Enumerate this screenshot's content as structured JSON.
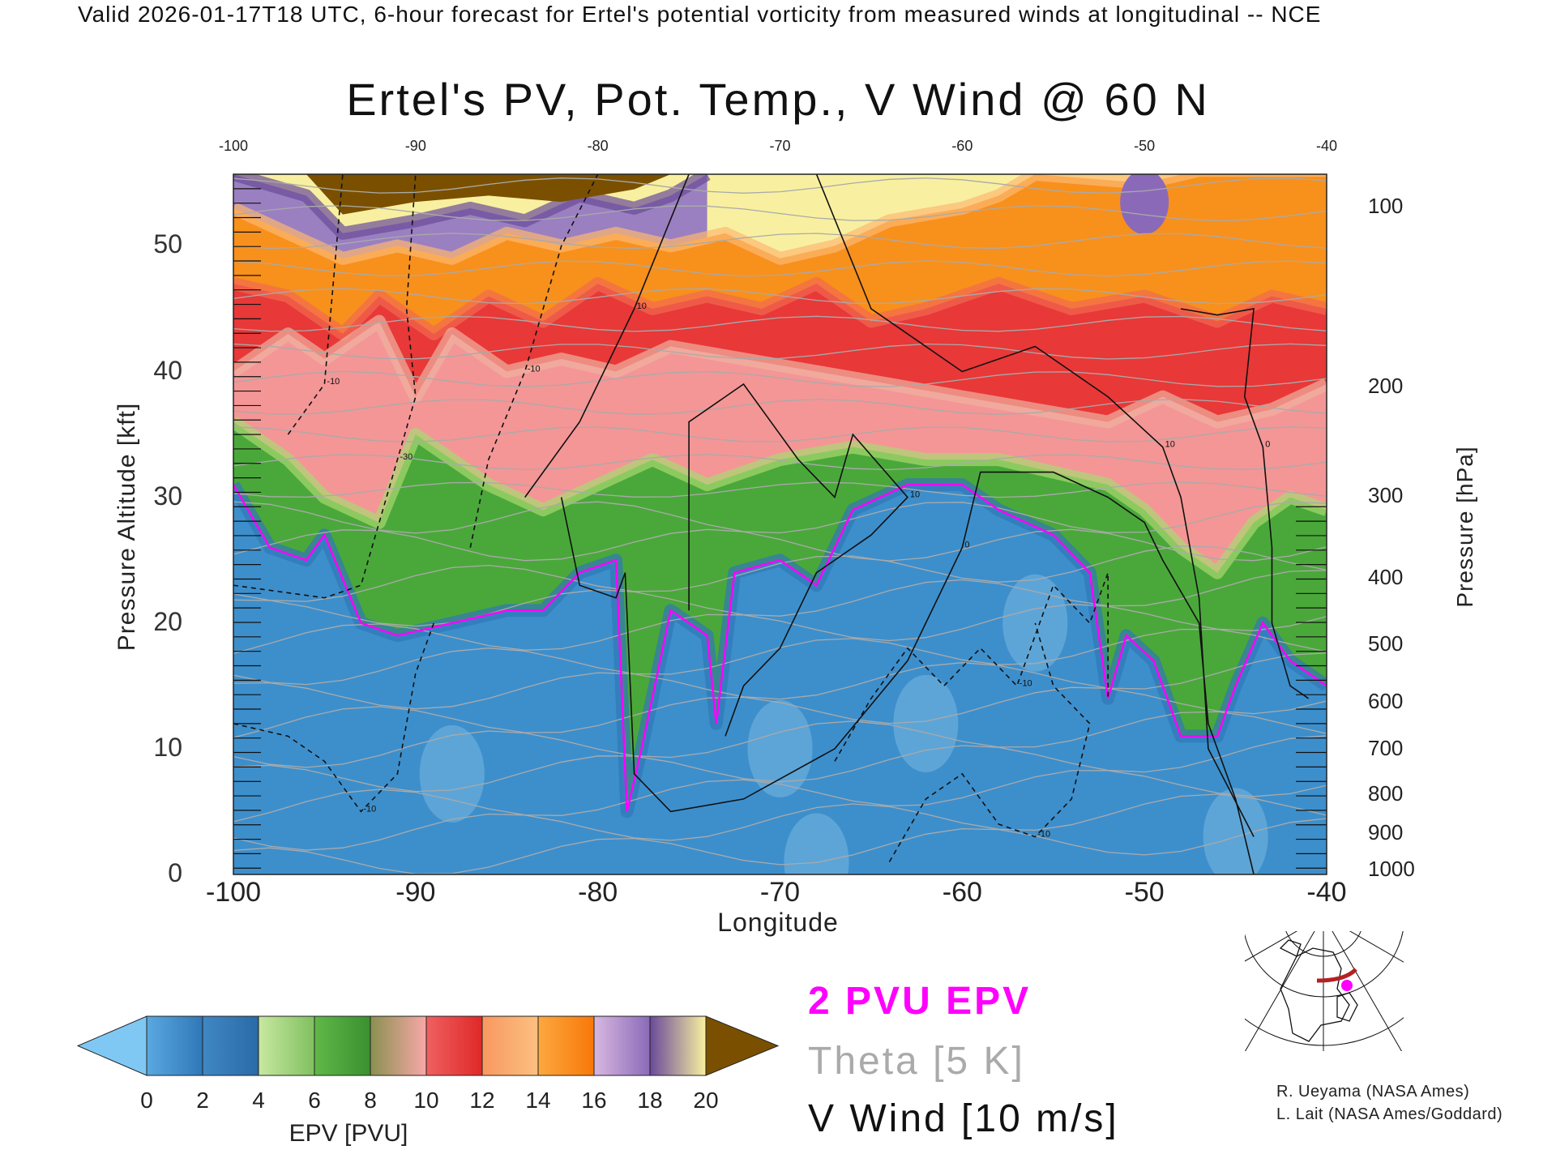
{
  "header": "Valid 2026-01-17T18 UTC, 6-hour forecast for Ertel's potential vorticity from measured winds at longitudinal -- NCE",
  "chart_data": {
    "type": "heatmap",
    "title": "Ertel's PV, Pot. Temp., V Wind @ 60 N",
    "xlabel": "Longitude",
    "ylabel": "Pressure Altitude [kft]",
    "y2label": "Pressure [hPa]",
    "xlim": [
      -100,
      -40
    ],
    "ylim": [
      0,
      55.7
    ],
    "x_ticks": [
      "-100",
      "-90",
      "-80",
      "-70",
      "-60",
      "-50",
      "-40"
    ],
    "top_ticks": [
      "-100",
      "-90",
      "-80",
      "-70",
      "-60",
      "-50",
      "-40"
    ],
    "y_ticks": [
      "0",
      "10",
      "20",
      "30",
      "40",
      "50"
    ],
    "pressure_ticks": [
      {
        "label": "100",
        "kft": 53.1
      },
      {
        "label": "200",
        "kft": 38.8
      },
      {
        "label": "300",
        "kft": 30.1
      },
      {
        "label": "400",
        "kft": 23.6
      },
      {
        "label": "500",
        "kft": 18.3
      },
      {
        "label": "600",
        "kft": 13.7
      },
      {
        "label": "700",
        "kft": 10.0
      },
      {
        "label": "800",
        "kft": 6.4
      },
      {
        "label": "900",
        "kft": 3.3
      },
      {
        "label": "1000",
        "kft": 0.4
      }
    ],
    "epv_bands_kft": {
      "pv2_tropopause": [
        [
          -100,
          31
        ],
        [
          -98,
          26
        ],
        [
          -96,
          25
        ],
        [
          -95,
          27
        ],
        [
          -93,
          20
        ],
        [
          -91,
          19
        ],
        [
          -88,
          20
        ],
        [
          -85,
          21
        ],
        [
          -83,
          21
        ],
        [
          -81,
          24
        ],
        [
          -79,
          25
        ],
        [
          -78.4,
          5
        ],
        [
          -77.6,
          10
        ],
        [
          -76,
          21
        ],
        [
          -74,
          19
        ],
        [
          -73.5,
          12
        ],
        [
          -72.5,
          24
        ],
        [
          -70,
          25
        ],
        [
          -68,
          23
        ],
        [
          -66,
          29
        ],
        [
          -63,
          31
        ],
        [
          -60,
          31
        ],
        [
          -58,
          29
        ],
        [
          -55,
          27
        ],
        [
          -53,
          24
        ],
        [
          -52,
          14
        ],
        [
          -51,
          19
        ],
        [
          -49.5,
          17
        ],
        [
          -48,
          11
        ],
        [
          -46,
          11
        ],
        [
          -45,
          15
        ],
        [
          -43.5,
          20
        ],
        [
          -42,
          17
        ],
        [
          -40,
          15
        ]
      ],
      "pv6": [
        [
          -100,
          36
        ],
        [
          -97,
          33
        ],
        [
          -95,
          30
        ],
        [
          -92,
          28
        ],
        [
          -90,
          35
        ],
        [
          -88,
          33
        ],
        [
          -86,
          31
        ],
        [
          -83,
          29
        ],
        [
          -80,
          31
        ],
        [
          -77,
          33
        ],
        [
          -74,
          31
        ],
        [
          -70,
          33
        ],
        [
          -66,
          34
        ],
        [
          -62,
          33
        ],
        [
          -58,
          33
        ],
        [
          -55,
          32
        ],
        [
          -52,
          31
        ],
        [
          -50,
          29
        ],
        [
          -48,
          26
        ],
        [
          -46,
          24
        ],
        [
          -44,
          28
        ],
        [
          -42,
          30
        ],
        [
          -40,
          29
        ]
      ],
      "pv8": [
        [
          -100,
          40
        ],
        [
          -97,
          43
        ],
        [
          -95,
          41
        ],
        [
          -92,
          44
        ],
        [
          -90,
          38
        ],
        [
          -88,
          43
        ],
        [
          -85,
          40
        ],
        [
          -82,
          41
        ],
        [
          -79,
          40
        ],
        [
          -76,
          42
        ],
        [
          -72,
          41
        ],
        [
          -68,
          40
        ],
        [
          -64,
          39
        ],
        [
          -60,
          38
        ],
        [
          -56,
          37
        ],
        [
          -52,
          36
        ],
        [
          -49,
          38
        ],
        [
          -46,
          36
        ],
        [
          -43,
          37
        ],
        [
          -40,
          39
        ]
      ],
      "pv11": [
        [
          -100,
          47
        ],
        [
          -97,
          46
        ],
        [
          -94,
          43
        ],
        [
          -92,
          46
        ],
        [
          -89,
          43
        ],
        [
          -86,
          46
        ],
        [
          -83,
          44
        ],
        [
          -80,
          47
        ],
        [
          -77,
          45
        ],
        [
          -74,
          46
        ],
        [
          -71,
          45
        ],
        [
          -68,
          47
        ],
        [
          -65,
          44
        ],
        [
          -62,
          45
        ],
        [
          -58,
          47
        ],
        [
          -54,
          45
        ],
        [
          -50,
          46
        ],
        [
          -46,
          44
        ],
        [
          -43,
          46
        ],
        [
          -40,
          45
        ]
      ],
      "pv14": [
        [
          -100,
          53
        ],
        [
          -97,
          51
        ],
        [
          -94,
          49
        ],
        [
          -91,
          50
        ],
        [
          -88,
          49
        ],
        [
          -85,
          51
        ],
        [
          -82,
          50
        ],
        [
          -79,
          51
        ],
        [
          -76,
          50
        ],
        [
          -73,
          51
        ],
        [
          -70,
          49
        ],
        [
          -67,
          50
        ],
        [
          -64,
          52
        ],
        [
          -60,
          53
        ],
        [
          -58,
          54
        ],
        [
          -56,
          55.7
        ],
        [
          -50,
          55
        ],
        [
          -47,
          56
        ],
        [
          -40,
          56
        ]
      ],
      "pv18": [
        [
          -100,
          55.7
        ],
        [
          -96,
          54
        ],
        [
          -94,
          51
        ],
        [
          -90,
          52
        ],
        [
          -87,
          53
        ],
        [
          -84,
          52
        ],
        [
          -81,
          54
        ],
        [
          -78,
          53
        ],
        [
          -76,
          54
        ],
        [
          -74,
          55.7
        ]
      ],
      "pv20": [
        [
          -96,
          55.7
        ],
        [
          -94,
          52.5
        ],
        [
          -90,
          53.5
        ],
        [
          -86,
          54
        ],
        [
          -82,
          53.5
        ],
        [
          -78,
          54.5
        ],
        [
          -76,
          55.7
        ]
      ]
    },
    "vwind_contours": [
      {
        "label": "0",
        "style": "solid",
        "points": [
          [
            -82,
            30
          ],
          [
            -81,
            23
          ],
          [
            -79,
            22
          ],
          [
            -78.5,
            24
          ],
          [
            -78,
            8
          ],
          [
            -76,
            5
          ],
          [
            -72,
            6
          ],
          [
            -67,
            10
          ],
          [
            -63,
            17
          ],
          [
            -60,
            26
          ],
          [
            -59,
            32
          ],
          [
            -55,
            32
          ],
          [
            -52,
            30
          ],
          [
            -50,
            28
          ],
          [
            -49,
            25
          ],
          [
            -47,
            20
          ],
          [
            -46.5,
            12
          ],
          [
            -45,
            6
          ],
          [
            -44,
            0
          ]
        ]
      },
      {
        "label": "10",
        "style": "solid",
        "points": [
          [
            -84,
            30
          ],
          [
            -81,
            36
          ],
          [
            -78,
            45
          ],
          [
            -75,
            55.7
          ]
        ]
      },
      {
        "label": "10",
        "style": "solid",
        "points": [
          [
            -68,
            55.7
          ],
          [
            -65,
            45
          ],
          [
            -60,
            40
          ],
          [
            -56,
            42
          ],
          [
            -52,
            38
          ],
          [
            -49,
            34
          ],
          [
            -48,
            30
          ],
          [
            -47,
            22
          ],
          [
            -46.5,
            10
          ],
          [
            -44,
            3
          ]
        ]
      },
      {
        "label": "10",
        "style": "solid",
        "points": [
          [
            -75,
            21
          ],
          [
            -75,
            36
          ],
          [
            -72,
            39
          ],
          [
            -69,
            33
          ],
          [
            -67,
            30
          ],
          [
            -66,
            35
          ],
          [
            -63,
            30
          ],
          [
            -65,
            27
          ],
          [
            -68,
            24
          ],
          [
            -70,
            18
          ],
          [
            -72,
            15
          ],
          [
            -73,
            11
          ]
        ]
      },
      {
        "label": "0",
        "style": "solid",
        "points": [
          [
            -48,
            45
          ],
          [
            -46,
            44.5
          ],
          [
            -44,
            45
          ],
          [
            -44.5,
            38
          ],
          [
            -43.5,
            34
          ],
          [
            -43,
            26
          ],
          [
            -43,
            20
          ],
          [
            -42,
            15
          ],
          [
            -41,
            14
          ]
        ]
      },
      {
        "label": "-10",
        "style": "dashed",
        "points": [
          [
            -97,
            35
          ],
          [
            -95,
            39
          ],
          [
            -94,
            55.7
          ]
        ]
      },
      {
        "label": "-10",
        "style": "dashed",
        "points": [
          [
            -87,
            26
          ],
          [
            -86,
            33
          ],
          [
            -84,
            40
          ],
          [
            -82,
            50
          ],
          [
            -80,
            55.7
          ]
        ]
      },
      {
        "label": "-30",
        "style": "dashed",
        "points": [
          [
            -100,
            23
          ],
          [
            -95,
            22
          ],
          [
            -93,
            23
          ],
          [
            -92,
            28
          ],
          [
            -91,
            33
          ],
          [
            -90,
            38
          ],
          [
            -90.5,
            45
          ],
          [
            -90,
            55.7
          ]
        ]
      },
      {
        "label": "-10",
        "style": "dashed",
        "points": [
          [
            -100,
            12
          ],
          [
            -97,
            11
          ],
          [
            -95,
            9
          ],
          [
            -93,
            5
          ],
          [
            -91,
            8
          ],
          [
            -90,
            16
          ],
          [
            -89,
            20
          ]
        ]
      },
      {
        "label": "-10",
        "style": "dashed",
        "points": [
          [
            -67,
            9
          ],
          [
            -65,
            14
          ],
          [
            -63,
            18
          ],
          [
            -61,
            15
          ],
          [
            -59,
            18
          ],
          [
            -57,
            15
          ],
          [
            -56,
            19
          ],
          [
            -55,
            23
          ],
          [
            -53,
            20
          ],
          [
            -52,
            24
          ],
          [
            -52,
            14
          ]
        ]
      },
      {
        "label": "-10",
        "style": "dashed",
        "points": [
          [
            -64,
            1
          ],
          [
            -62,
            6
          ],
          [
            -60,
            8
          ],
          [
            -58,
            4
          ],
          [
            -56,
            3
          ],
          [
            -54,
            6
          ],
          [
            -53,
            12
          ],
          [
            -55,
            15
          ],
          [
            -56,
            20
          ]
        ]
      }
    ],
    "theta_interval_K": 5,
    "colorbar": {
      "label": "EPV [PVU]",
      "ticks": [
        "0",
        "2",
        "4",
        "6",
        "8",
        "10",
        "12",
        "14",
        "16",
        "18",
        "20"
      ],
      "range": [
        0,
        20
      ],
      "extend": "both",
      "colors": [
        "#3d8fcc",
        "#2f78b8",
        "#b0dc88",
        "#5cb04a",
        "#3a9030",
        "#f4a0a0",
        "#e83838",
        "#fcb870",
        "#f88820",
        "#c0a8d8",
        "#6a4a9a",
        "#f8f0a0",
        "#7a5000"
      ]
    },
    "legend": [
      {
        "label": "2 PVU EPV",
        "color": "#ff00ff"
      },
      {
        "label": "Theta [5 K]",
        "color": "#aaaaaa"
      },
      {
        "label": "V Wind [10 m/s]",
        "color": "#111111"
      }
    ]
  },
  "credits": [
    "R. Ueyama (NASA Ames)",
    "L. Lait (NASA Ames/Goddard)"
  ],
  "colors": {
    "pv2": "#ff00ff",
    "theta": "#aaaaaa",
    "wind": "#111111",
    "section_line": "#b22222",
    "location_dot": "#ff00ff"
  }
}
